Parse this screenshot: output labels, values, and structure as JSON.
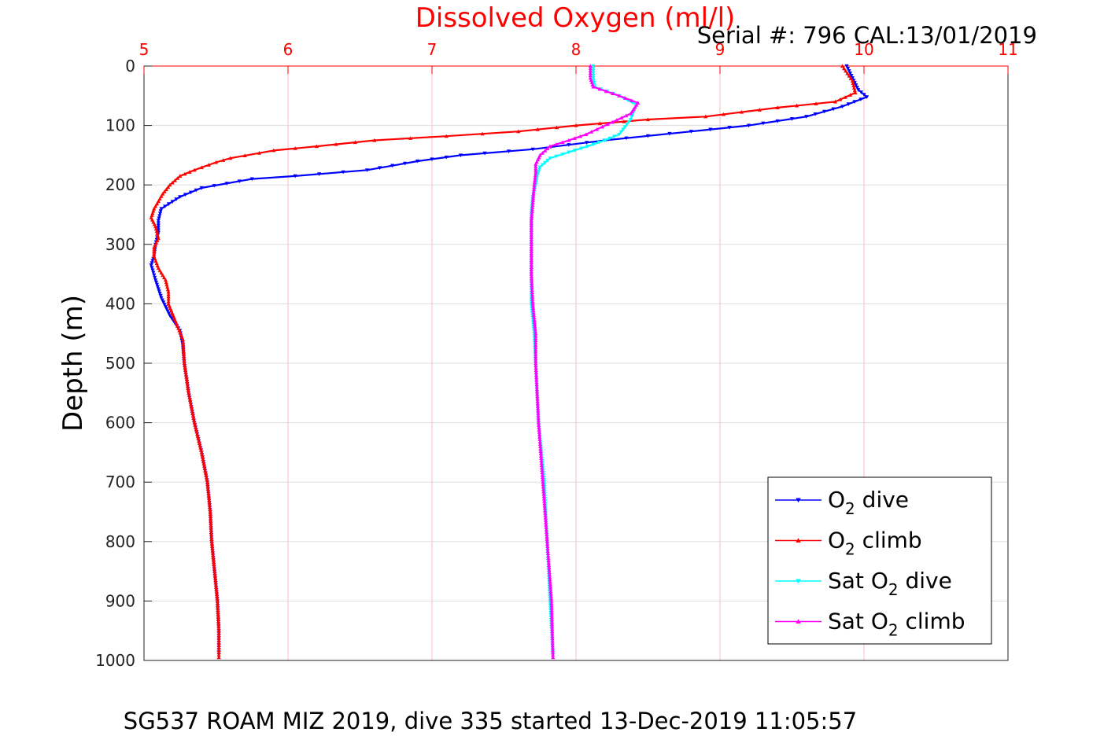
{
  "chart_data": {
    "type": "line",
    "title": "Dissolved Oxygen (ml/l)",
    "subtitle": "Serial #: 796  CAL:13/01/2019",
    "caption": "SG537 ROAM MIZ 2019, dive 335 started 13-Dec-2019 11:05:57",
    "ylabel": "Depth (m)",
    "xlim": [
      5,
      11
    ],
    "ylim": [
      0,
      1000
    ],
    "y_reversed": true,
    "x_axis_position": "top",
    "x_ticks": [
      "5",
      "6",
      "7",
      "8",
      "9",
      "10",
      "11"
    ],
    "y_ticks": [
      "0",
      "100",
      "200",
      "300",
      "400",
      "500",
      "600",
      "700",
      "800",
      "900",
      "1000"
    ],
    "grid": true,
    "legend_position": "bottom-right",
    "colors": {
      "title": "#ff0000",
      "x_axis": "#ff0000",
      "grid_vertical": "#ffb8c8",
      "grid_horizontal": "#dddddd"
    },
    "series": [
      {
        "name": "O2 dive",
        "legend": {
          "base": "O",
          "sub": "2",
          "prefix": "",
          "suffix": " dive"
        },
        "color": "#0000ff",
        "marker": "triangle-down",
        "points": [
          [
            9.88,
            0
          ],
          [
            9.92,
            20
          ],
          [
            9.96,
            40
          ],
          [
            10.02,
            52
          ],
          [
            9.85,
            68
          ],
          [
            9.6,
            85
          ],
          [
            9.2,
            100
          ],
          [
            8.8,
            110
          ],
          [
            8.2,
            125
          ],
          [
            7.7,
            140
          ],
          [
            7.2,
            150
          ],
          [
            6.9,
            160
          ],
          [
            6.55,
            175
          ],
          [
            6.05,
            185
          ],
          [
            5.75,
            190
          ],
          [
            5.4,
            205
          ],
          [
            5.25,
            220
          ],
          [
            5.12,
            240
          ],
          [
            5.1,
            260
          ],
          [
            5.1,
            280
          ],
          [
            5.08,
            300
          ],
          [
            5.07,
            320
          ],
          [
            5.05,
            335
          ],
          [
            5.08,
            360
          ],
          [
            5.12,
            390
          ],
          [
            5.18,
            420
          ],
          [
            5.25,
            445
          ],
          [
            5.27,
            470
          ],
          [
            5.28,
            500
          ],
          [
            5.31,
            550
          ],
          [
            5.35,
            600
          ],
          [
            5.4,
            650
          ],
          [
            5.44,
            700
          ],
          [
            5.46,
            750
          ],
          [
            5.47,
            800
          ],
          [
            5.49,
            850
          ],
          [
            5.51,
            900
          ],
          [
            5.52,
            950
          ],
          [
            5.52,
            990
          ]
        ]
      },
      {
        "name": "O2 climb",
        "legend": {
          "base": "O",
          "sub": "2",
          "prefix": "",
          "suffix": " climb"
        },
        "color": "#ff0000",
        "marker": "triangle-up",
        "points": [
          [
            9.85,
            0
          ],
          [
            9.92,
            25
          ],
          [
            9.94,
            45
          ],
          [
            9.8,
            60
          ],
          [
            9.4,
            70
          ],
          [
            8.9,
            85
          ],
          [
            8.5,
            90
          ],
          [
            8.0,
            100
          ],
          [
            7.6,
            110
          ],
          [
            7.1,
            118
          ],
          [
            6.6,
            125
          ],
          [
            6.2,
            135
          ],
          [
            5.9,
            142
          ],
          [
            5.6,
            155
          ],
          [
            5.5,
            162
          ],
          [
            5.35,
            175
          ],
          [
            5.25,
            185
          ],
          [
            5.18,
            200
          ],
          [
            5.13,
            215
          ],
          [
            5.07,
            240
          ],
          [
            5.05,
            255
          ],
          [
            5.08,
            270
          ],
          [
            5.1,
            290
          ],
          [
            5.07,
            305
          ],
          [
            5.07,
            320
          ],
          [
            5.1,
            340
          ],
          [
            5.15,
            360
          ],
          [
            5.17,
            380
          ],
          [
            5.17,
            400
          ],
          [
            5.22,
            430
          ],
          [
            5.27,
            460
          ],
          [
            5.28,
            500
          ],
          [
            5.31,
            550
          ],
          [
            5.35,
            600
          ],
          [
            5.4,
            650
          ],
          [
            5.44,
            700
          ],
          [
            5.46,
            750
          ],
          [
            5.47,
            800
          ],
          [
            5.49,
            850
          ],
          [
            5.51,
            900
          ],
          [
            5.52,
            950
          ],
          [
            5.52,
            995
          ]
        ]
      },
      {
        "name": "Sat O2 dive",
        "legend": {
          "base": "O",
          "sub": "2",
          "prefix": "Sat ",
          "suffix": " dive"
        },
        "color": "#00ffff",
        "marker": "triangle-down",
        "points": [
          [
            8.12,
            0
          ],
          [
            8.12,
            20
          ],
          [
            8.13,
            35
          ],
          [
            8.3,
            50
          ],
          [
            8.42,
            65
          ],
          [
            8.38,
            90
          ],
          [
            8.3,
            115
          ],
          [
            8.2,
            125
          ],
          [
            8.08,
            135
          ],
          [
            7.95,
            145
          ],
          [
            7.82,
            155
          ],
          [
            7.75,
            170
          ],
          [
            7.73,
            185
          ],
          [
            7.72,
            200
          ],
          [
            7.7,
            220
          ],
          [
            7.69,
            250
          ],
          [
            7.69,
            300
          ],
          [
            7.69,
            350
          ],
          [
            7.69,
            400
          ],
          [
            7.71,
            450
          ],
          [
            7.72,
            500
          ],
          [
            7.74,
            600
          ],
          [
            7.78,
            700
          ],
          [
            7.8,
            800
          ],
          [
            7.82,
            900
          ],
          [
            7.84,
            990
          ]
        ]
      },
      {
        "name": "Sat O2 climb",
        "legend": {
          "base": "O",
          "sub": "2",
          "prefix": "Sat ",
          "suffix": " climb"
        },
        "color": "#ff00ff",
        "marker": "triangle-up",
        "points": [
          [
            8.1,
            0
          ],
          [
            8.1,
            20
          ],
          [
            8.12,
            35
          ],
          [
            8.3,
            50
          ],
          [
            8.43,
            62
          ],
          [
            8.38,
            80
          ],
          [
            8.22,
            98
          ],
          [
            8.07,
            115
          ],
          [
            7.95,
            125
          ],
          [
            7.82,
            135
          ],
          [
            7.75,
            150
          ],
          [
            7.72,
            165
          ],
          [
            7.72,
            180
          ],
          [
            7.71,
            200
          ],
          [
            7.7,
            230
          ],
          [
            7.69,
            260
          ],
          [
            7.69,
            300
          ],
          [
            7.69,
            350
          ],
          [
            7.7,
            400
          ],
          [
            7.72,
            450
          ],
          [
            7.72,
            500
          ],
          [
            7.74,
            600
          ],
          [
            7.77,
            700
          ],
          [
            7.8,
            800
          ],
          [
            7.83,
            900
          ],
          [
            7.84,
            995
          ]
        ]
      }
    ]
  }
}
